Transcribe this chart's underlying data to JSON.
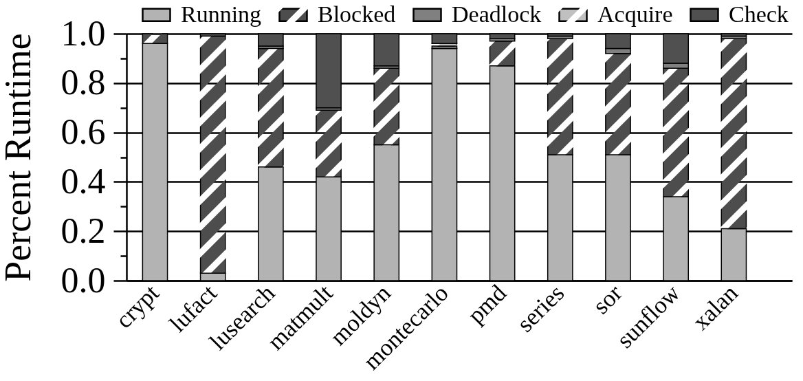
{
  "chart_data": {
    "type": "bar",
    "stacked": true,
    "ylabel": "Percent Runtime",
    "categories": [
      "crypt",
      "lufact",
      "lusearch",
      "matmult",
      "moldyn",
      "montecarlo",
      "pmd",
      "series",
      "sor",
      "sunflow",
      "xalan"
    ],
    "series": [
      {
        "name": "Running",
        "color": "#b3b3b3",
        "values": [
          0.96,
          0.03,
          0.46,
          0.42,
          0.55,
          0.94,
          0.87,
          0.51,
          0.51,
          0.34,
          0.21
        ]
      },
      {
        "name": "Blocked",
        "color": "#4d4d4d",
        "values": [
          0.04,
          0.96,
          0.48,
          0.27,
          0.31,
          0,
          0.1,
          0.47,
          0.41,
          0.52,
          0.77
        ]
      },
      {
        "name": "Deadlock",
        "color": "#808080",
        "values": [
          0,
          0,
          0.01,
          0.01,
          0.01,
          0.01,
          0.01,
          0.01,
          0.02,
          0.02,
          0.01
        ]
      },
      {
        "name": "Acquire",
        "color": "#c0c0c0",
        "values": [
          0,
          0,
          0,
          0,
          0,
          0.01,
          0,
          0,
          0,
          0,
          0
        ]
      },
      {
        "name": "Check",
        "color": "#505050",
        "values": [
          0,
          0.01,
          0.05,
          0.3,
          0.13,
          0.04,
          0.02,
          0.01,
          0.06,
          0.12,
          0.01
        ]
      }
    ],
    "ylim": [
      0,
      1
    ],
    "yticks": [
      {
        "value": 0,
        "label": "0.0"
      },
      {
        "value": 0.1,
        "label": null
      },
      0.2,
      {
        "value": 0.3,
        "label": null
      },
      0.4,
      {
        "value": 0.5,
        "label": null
      },
      0.6,
      {
        "value": 0.7,
        "label": null
      },
      0.8,
      {
        "value": 0.9,
        "label": null
      },
      {
        "value": 1,
        "label": "1.0"
      }
    ],
    "grid": "y",
    "legend": "top"
  }
}
